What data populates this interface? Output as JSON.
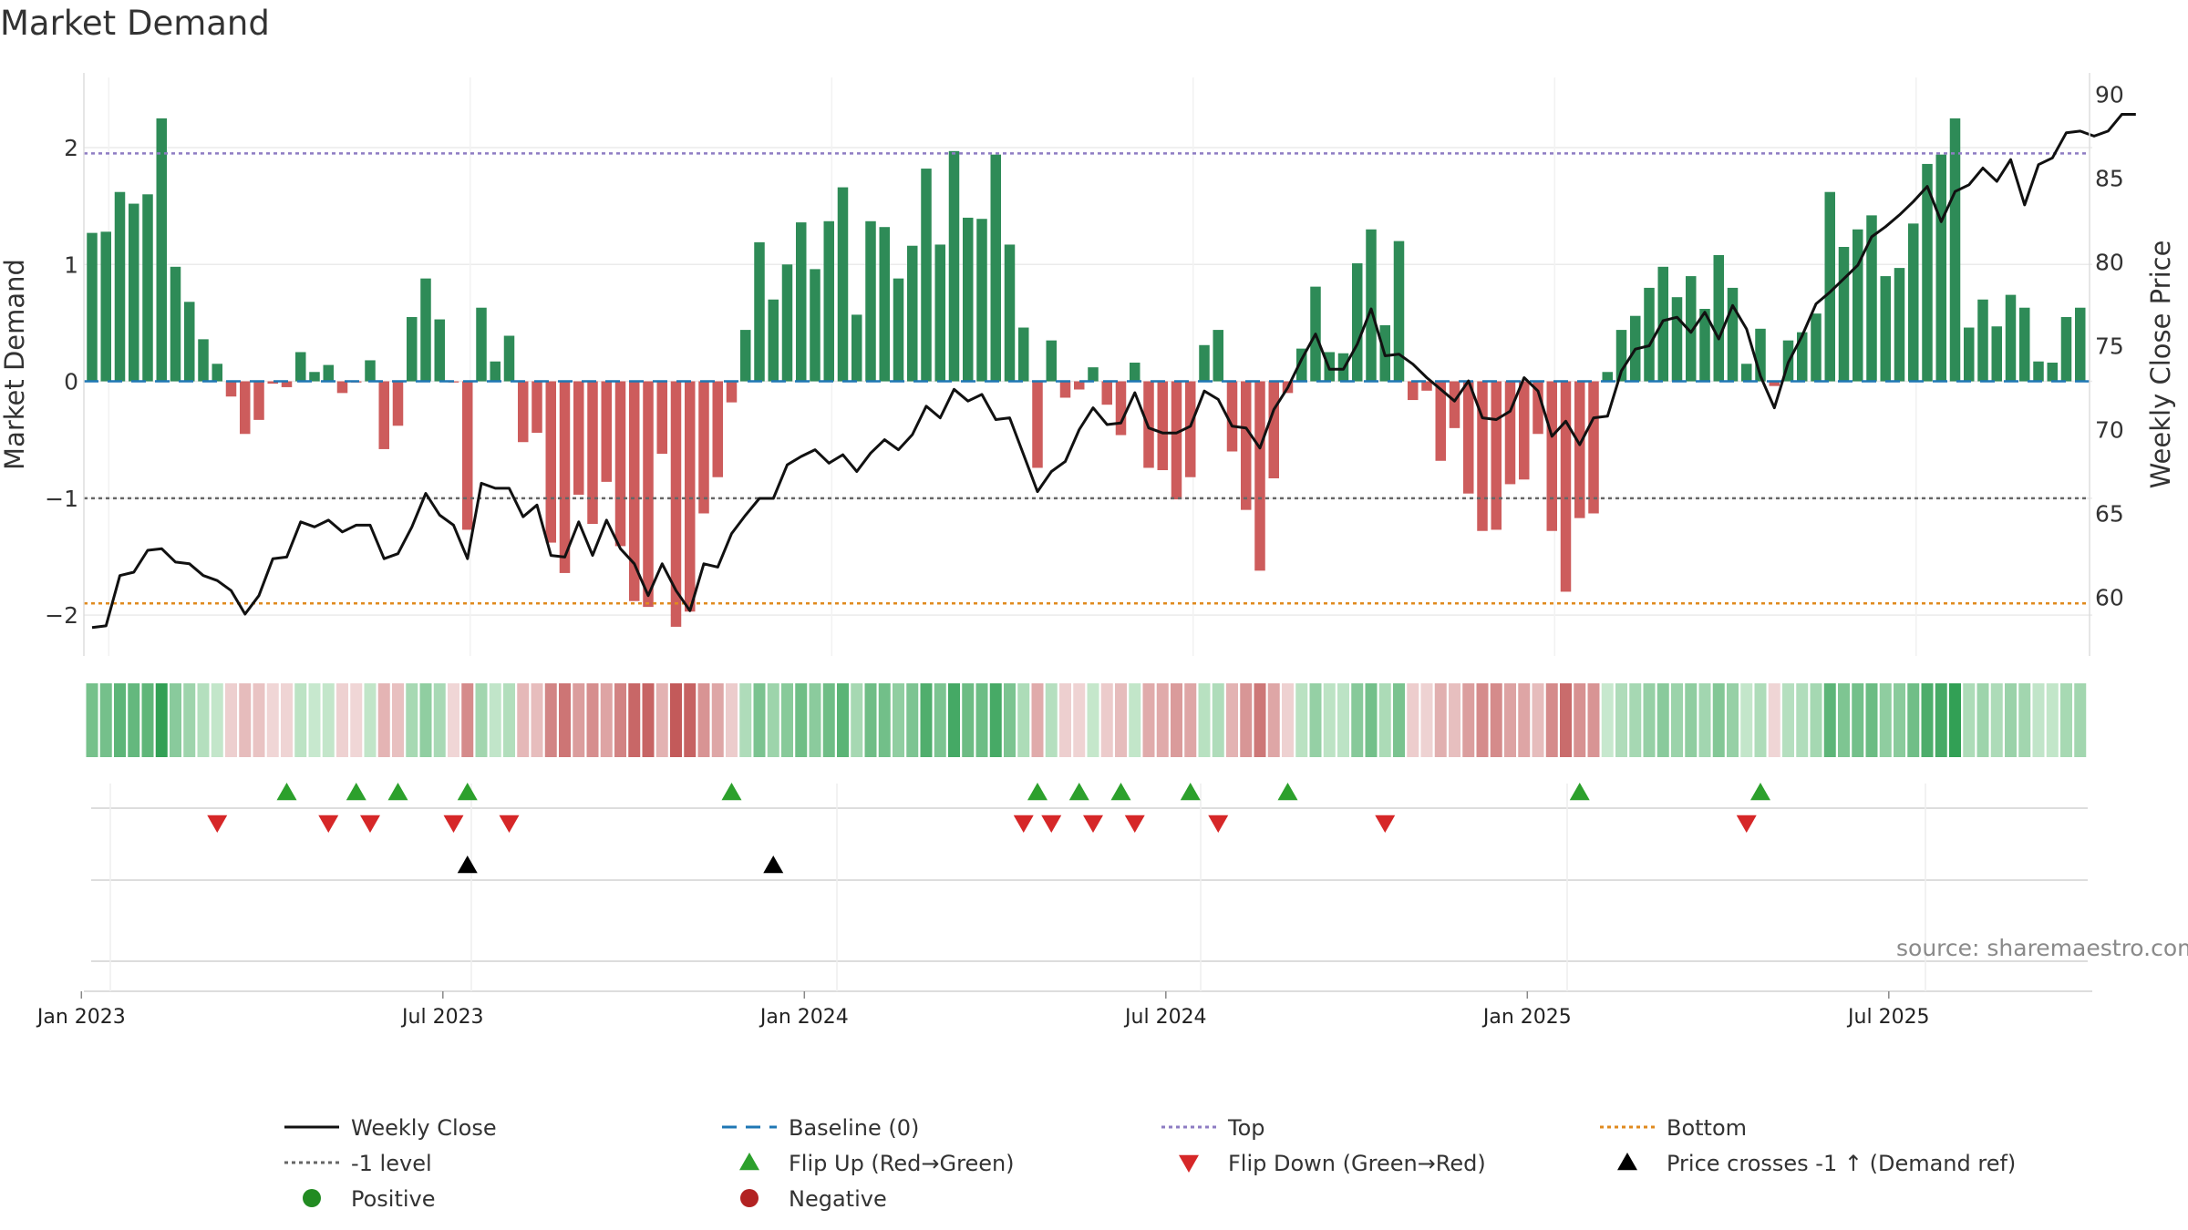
{
  "chart_data": {
    "type": "bar+line",
    "title": "Market Demand",
    "ylabel_left": "Market Demand",
    "ylabel_right": "Weekly Close Price",
    "ylim_left": [
      -2.35,
      2.6
    ],
    "ylim_right": [
      56.5,
      91
    ],
    "left_ticks": [
      "2",
      "1",
      "0",
      "−1",
      "−2"
    ],
    "left_tick_values": [
      2,
      1,
      0,
      -1,
      -2
    ],
    "right_ticks": [
      "90",
      "85",
      "80",
      "75",
      "70",
      "65",
      "60"
    ],
    "right_tick_values": [
      90,
      85,
      80,
      75,
      70,
      65,
      60
    ],
    "x_labels": [
      "Jan 2023",
      "Jul 2023",
      "Jan 2024",
      "Jul 2024",
      "Jan 2025",
      "Jul 2025"
    ],
    "x_label_weeks": [
      0,
      26,
      52,
      78,
      104,
      130
    ],
    "reference_lines": {
      "top": 1.95,
      "minus_one": -1,
      "bottom": -1.9,
      "baseline": 0
    },
    "colors": {
      "positive": "#2e8b57",
      "negative": "#cd5c5c",
      "close": "#111111",
      "top": "#8e7cc3",
      "bottom": "#e08a1e",
      "level": "#666666",
      "baseline": "#1f77b4",
      "flip_up": "#2ca02c",
      "flip_down": "#d62728",
      "cross": "#000000",
      "pos_dot": "#228b22",
      "neg_dot": "#b22222"
    },
    "demand": [
      1.27,
      1.28,
      1.62,
      1.52,
      1.6,
      2.25,
      0.98,
      0.68,
      0.36,
      0.15,
      -0.13,
      -0.45,
      -0.33,
      -0.02,
      -0.05,
      0.25,
      0.08,
      0.14,
      -0.1,
      -0.01,
      0.18,
      -0.58,
      -0.38,
      0.55,
      0.88,
      0.53,
      -0.01,
      -1.27,
      0.63,
      0.17,
      0.39,
      -0.52,
      -0.44,
      -1.38,
      -1.64,
      -0.97,
      -1.22,
      -0.86,
      -1.41,
      -1.88,
      -1.93,
      -0.62,
      -2.1,
      -1.97,
      -1.13,
      -0.82,
      -0.18,
      0.44,
      1.19,
      0.7,
      1.0,
      1.36,
      0.96,
      1.37,
      1.66,
      0.57,
      1.37,
      1.32,
      0.88,
      1.16,
      1.82,
      1.17,
      1.97,
      1.4,
      1.39,
      1.94,
      1.17,
      0.46,
      -0.74,
      0.35,
      -0.14,
      -0.07,
      0.12,
      -0.2,
      -0.46,
      0.16,
      -0.74,
      -0.76,
      -1.01,
      -0.82,
      0.31,
      0.44,
      -0.6,
      -1.1,
      -1.62,
      -0.83,
      -0.1,
      0.28,
      0.81,
      0.25,
      0.24,
      1.01,
      1.3,
      0.48,
      1.2,
      -0.16,
      -0.08,
      -0.68,
      -0.4,
      -0.96,
      -1.28,
      -1.27,
      -0.88,
      -0.84,
      -0.45,
      -1.28,
      -1.8,
      -1.17,
      -1.13,
      0.08,
      0.44,
      0.56,
      0.8,
      0.98,
      0.72,
      0.9,
      0.62,
      1.08,
      0.8,
      0.15,
      0.45,
      -0.04,
      0.35,
      0.42,
      0.58,
      1.62,
      1.15,
      1.3,
      1.42,
      0.9,
      0.97,
      1.35,
      1.86,
      1.94,
      2.25,
      0.46,
      0.7,
      0.47,
      0.74,
      0.63,
      0.17,
      0.16,
      0.55,
      0.63
    ],
    "close": [
      58.2,
      58.3,
      61.3,
      61.5,
      62.8,
      62.9,
      62.1,
      62.0,
      61.3,
      61.0,
      60.4,
      59.0,
      60.1,
      62.3,
      62.4,
      64.5,
      64.2,
      64.6,
      63.9,
      64.3,
      64.3,
      62.3,
      62.6,
      64.2,
      66.2,
      64.9,
      64.3,
      62.3,
      66.8,
      66.5,
      66.5,
      64.8,
      65.5,
      62.5,
      62.4,
      64.5,
      62.5,
      64.6,
      62.9,
      62.0,
      60.1,
      62.0,
      60.4,
      59.2,
      62.0,
      61.8,
      63.8,
      64.9,
      65.9,
      65.9,
      67.9,
      68.4,
      68.8,
      68.0,
      68.5,
      67.5,
      68.6,
      69.4,
      68.8,
      69.7,
      71.4,
      70.7,
      72.4,
      71.7,
      72.1,
      70.6,
      70.7,
      68.5,
      66.3,
      67.5,
      68.1,
      70.0,
      71.3,
      70.3,
      70.4,
      72.2,
      70.1,
      69.8,
      69.8,
      70.2,
      72.3,
      71.8,
      70.2,
      70.1,
      68.9,
      71.2,
      72.5,
      74.2,
      75.7,
      73.6,
      73.6,
      75.1,
      77.2,
      74.4,
      74.5,
      73.9,
      73.1,
      72.4,
      71.7,
      72.9,
      70.7,
      70.6,
      71.1,
      73.1,
      72.3,
      69.6,
      70.5,
      69.1,
      70.7,
      70.8,
      73.5,
      74.8,
      75.0,
      76.5,
      76.7,
      75.8,
      77.0,
      75.4,
      77.4,
      76.0,
      73.2,
      71.3,
      74.0,
      75.6,
      77.5,
      78.2,
      79.0,
      79.8,
      81.5,
      82.1,
      82.8,
      83.6,
      84.5,
      82.4,
      84.2,
      84.6,
      85.6,
      84.8,
      86.1,
      83.4,
      85.8,
      86.2,
      87.7,
      87.8,
      87.5,
      87.8,
      88.8,
      88.8
    ],
    "flip_up_weeks": [
      14,
      19,
      22,
      27,
      46,
      68,
      71,
      74,
      79,
      86,
      107,
      120
    ],
    "flip_down_weeks": [
      9,
      17,
      20,
      26,
      30,
      67,
      69,
      72,
      75,
      81,
      93,
      119
    ],
    "cross_weeks": [
      27,
      49
    ],
    "source": "source: sharemaestro.com",
    "legend": [
      {
        "label": "Weekly Close",
        "symbol": "line-solid",
        "color": "#111111"
      },
      {
        "label": "Baseline (0)",
        "symbol": "line-dash",
        "color": "#1f77b4"
      },
      {
        "label": "Top",
        "symbol": "line-dot",
        "color": "#8e7cc3"
      },
      {
        "label": "Bottom",
        "symbol": "line-dot",
        "color": "#e08a1e"
      },
      {
        "label": "-1 level",
        "symbol": "line-dot",
        "color": "#666666"
      },
      {
        "label": "Flip Up (Red→Green)",
        "symbol": "triangle-up",
        "color": "#2ca02c"
      },
      {
        "label": "Flip Down (Green→Red)",
        "symbol": "triangle-down",
        "color": "#d62728"
      },
      {
        "label": "Price crosses -1 ↑ (Demand ref)",
        "symbol": "triangle-up",
        "color": "#000000"
      },
      {
        "label": "Positive",
        "symbol": "dot",
        "color": "#228b22"
      },
      {
        "label": "Negative",
        "symbol": "dot",
        "color": "#b22222"
      }
    ]
  }
}
